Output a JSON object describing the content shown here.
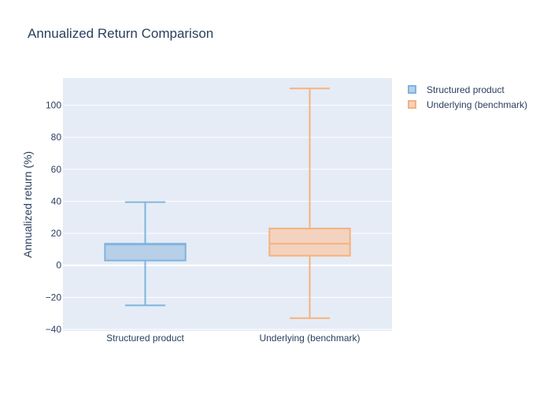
{
  "chart_data": {
    "type": "box",
    "title": "Annualized Return Comparison",
    "xlabel": "",
    "ylabel": "Annualized return (%)",
    "ylim": [
      -41,
      117
    ],
    "yticks": [
      -40,
      -20,
      0,
      20,
      40,
      60,
      80,
      100
    ],
    "grid": true,
    "legend_position": "top-right",
    "categories": [
      "Structured product",
      "Underlying (benchmark)"
    ],
    "series": [
      {
        "name": "Structured product",
        "category": "Structured product",
        "min": -25,
        "q1": 3,
        "median": 13,
        "q3": 13.5,
        "max": 39.5,
        "color": "#7fb3de",
        "fill": "#b7d0e8"
      },
      {
        "name": "Underlying (benchmark)",
        "category": "Underlying (benchmark)",
        "min": -33,
        "q1": 6,
        "median": 13.5,
        "q3": 23,
        "max": 110.5,
        "color": "#f7b17d",
        "fill": "#f3d2bf"
      }
    ],
    "colors": {
      "plot_bg": "#e5ecf6",
      "grid": "#ffffff",
      "text": "#2a3f5f"
    }
  }
}
